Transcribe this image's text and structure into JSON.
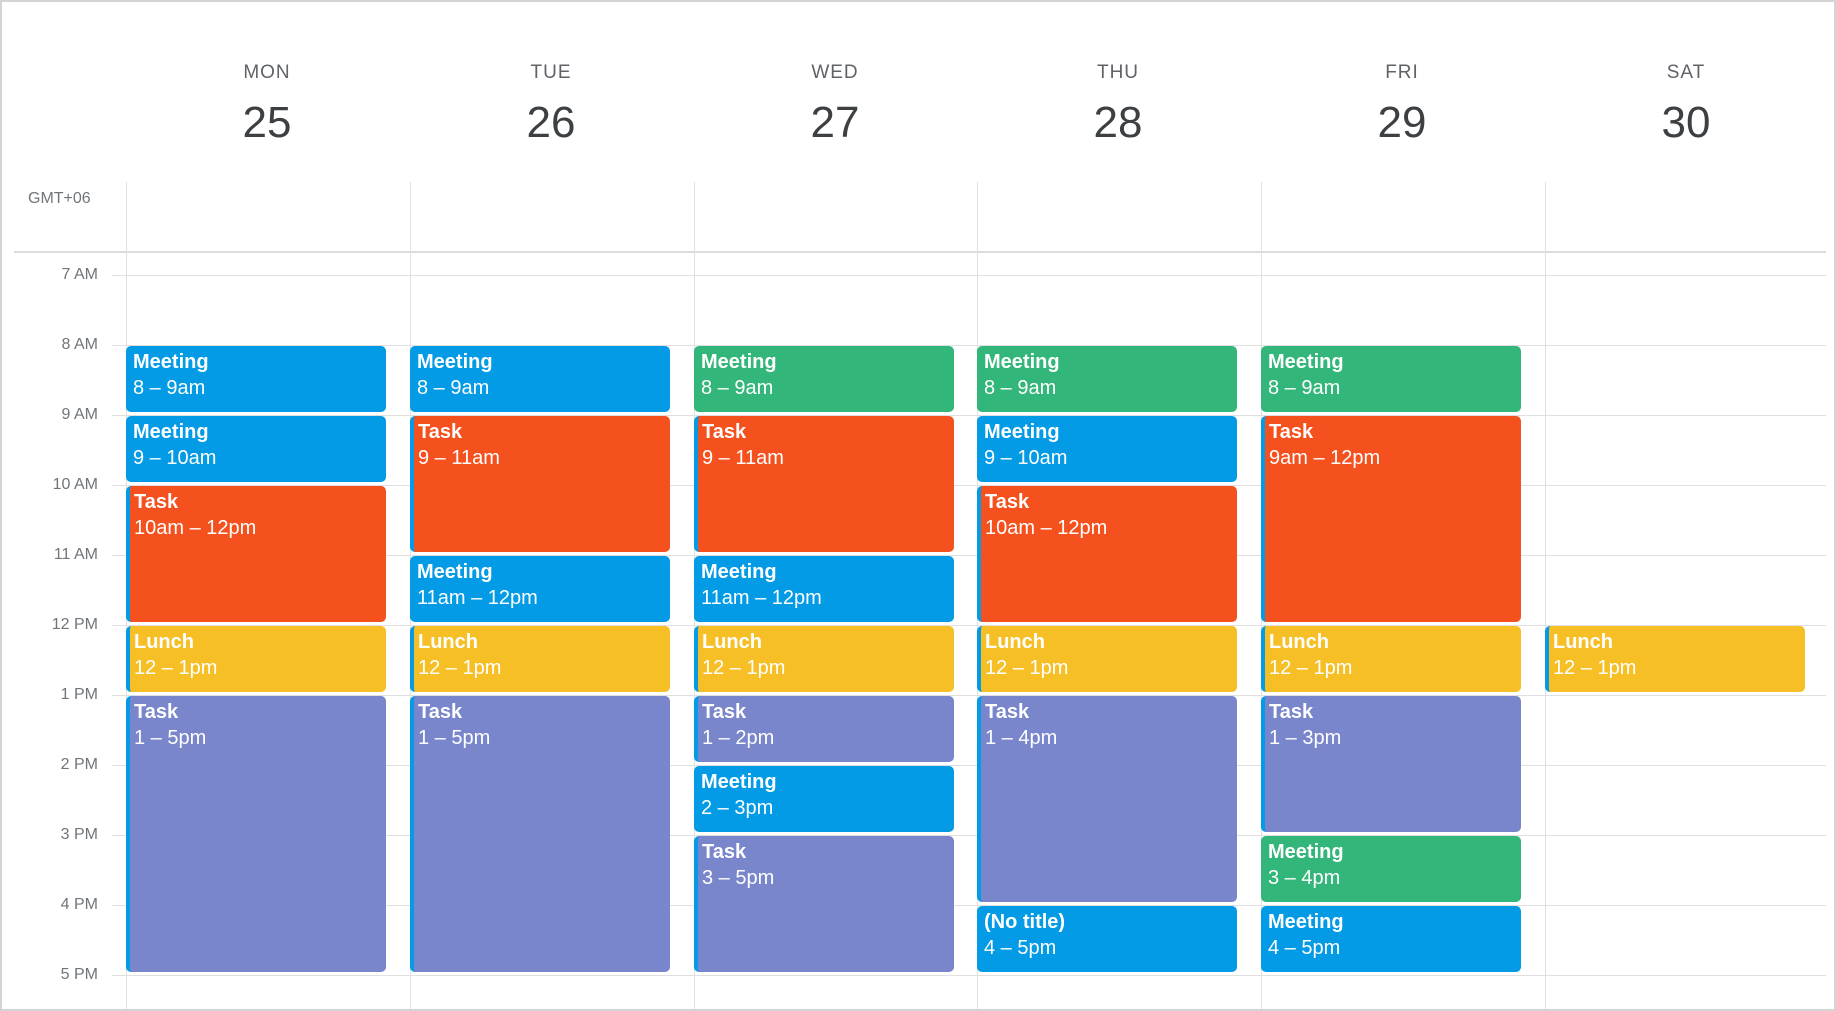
{
  "timezone_label": "GMT+06",
  "days": [
    {
      "name": "MON",
      "date": "25"
    },
    {
      "name": "TUE",
      "date": "26"
    },
    {
      "name": "WED",
      "date": "27"
    },
    {
      "name": "THU",
      "date": "28"
    },
    {
      "name": "FRI",
      "date": "29"
    },
    {
      "name": "SAT",
      "date": "30"
    }
  ],
  "hours": [
    "7 AM",
    "8 AM",
    "9 AM",
    "10 AM",
    "11 AM",
    "12 PM",
    "1 PM",
    "2 PM",
    "3 PM",
    "4 PM",
    "5 PM"
  ],
  "colors": {
    "blue": "#039be5",
    "green": "#33b679",
    "orange": "#f4511e",
    "yellow": "#f6bf26",
    "purple": "#7986cb"
  },
  "events": [
    {
      "day": 0,
      "start": 8,
      "end": 9,
      "title": "Meeting",
      "time": "8 – 9am",
      "color": "blue"
    },
    {
      "day": 0,
      "start": 9,
      "end": 10,
      "title": "Meeting",
      "time": "9 – 10am",
      "color": "blue"
    },
    {
      "day": 0,
      "start": 10,
      "end": 12,
      "title": "Task",
      "time": "10am – 12pm",
      "color": "orange"
    },
    {
      "day": 0,
      "start": 12,
      "end": 13,
      "title": "Lunch",
      "time": "12 – 1pm",
      "color": "yellow"
    },
    {
      "day": 0,
      "start": 13,
      "end": 17,
      "title": "Task",
      "time": "1 – 5pm",
      "color": "purple"
    },
    {
      "day": 1,
      "start": 8,
      "end": 9,
      "title": "Meeting",
      "time": "8 – 9am",
      "color": "blue"
    },
    {
      "day": 1,
      "start": 9,
      "end": 11,
      "title": "Task",
      "time": "9 – 11am",
      "color": "orange"
    },
    {
      "day": 1,
      "start": 11,
      "end": 12,
      "title": "Meeting",
      "time": "11am – 12pm",
      "color": "blue"
    },
    {
      "day": 1,
      "start": 12,
      "end": 13,
      "title": "Lunch",
      "time": "12 – 1pm",
      "color": "yellow"
    },
    {
      "day": 1,
      "start": 13,
      "end": 17,
      "title": "Task",
      "time": "1 – 5pm",
      "color": "purple"
    },
    {
      "day": 2,
      "start": 8,
      "end": 9,
      "title": "Meeting",
      "time": "8 – 9am",
      "color": "green"
    },
    {
      "day": 2,
      "start": 9,
      "end": 11,
      "title": "Task",
      "time": "9 – 11am",
      "color": "orange"
    },
    {
      "day": 2,
      "start": 11,
      "end": 12,
      "title": "Meeting",
      "time": "11am – 12pm",
      "color": "blue"
    },
    {
      "day": 2,
      "start": 12,
      "end": 13,
      "title": "Lunch",
      "time": "12 – 1pm",
      "color": "yellow"
    },
    {
      "day": 2,
      "start": 13,
      "end": 14,
      "title": "Task",
      "time": "1 – 2pm",
      "color": "purple"
    },
    {
      "day": 2,
      "start": 14,
      "end": 15,
      "title": "Meeting",
      "time": "2 – 3pm",
      "color": "blue"
    },
    {
      "day": 2,
      "start": 15,
      "end": 17,
      "title": "Task",
      "time": "3 – 5pm",
      "color": "purple"
    },
    {
      "day": 3,
      "start": 8,
      "end": 9,
      "title": "Meeting",
      "time": "8 – 9am",
      "color": "green"
    },
    {
      "day": 3,
      "start": 9,
      "end": 10,
      "title": "Meeting",
      "time": "9 – 10am",
      "color": "blue"
    },
    {
      "day": 3,
      "start": 10,
      "end": 12,
      "title": "Task",
      "time": "10am – 12pm",
      "color": "orange"
    },
    {
      "day": 3,
      "start": 12,
      "end": 13,
      "title": "Lunch",
      "time": "12 – 1pm",
      "color": "yellow"
    },
    {
      "day": 3,
      "start": 13,
      "end": 16,
      "title": "Task",
      "time": "1 – 4pm",
      "color": "purple"
    },
    {
      "day": 3,
      "start": 16,
      "end": 17,
      "title": "(No title)",
      "time": "4 – 5pm",
      "color": "blue"
    },
    {
      "day": 4,
      "start": 8,
      "end": 9,
      "title": "Meeting",
      "time": "8 – 9am",
      "color": "green"
    },
    {
      "day": 4,
      "start": 9,
      "end": 12,
      "title": "Task",
      "time": "9am – 12pm",
      "color": "orange"
    },
    {
      "day": 4,
      "start": 12,
      "end": 13,
      "title": "Lunch",
      "time": "12 – 1pm",
      "color": "yellow"
    },
    {
      "day": 4,
      "start": 13,
      "end": 15,
      "title": "Task",
      "time": "1 – 3pm",
      "color": "purple"
    },
    {
      "day": 4,
      "start": 15,
      "end": 16,
      "title": "Meeting",
      "time": "3 – 4pm",
      "color": "green"
    },
    {
      "day": 4,
      "start": 16,
      "end": 17,
      "title": "Meeting",
      "time": "4 – 5pm",
      "color": "blue"
    },
    {
      "day": 5,
      "start": 12,
      "end": 13,
      "title": "Lunch",
      "time": "12 – 1pm",
      "color": "yellow"
    }
  ]
}
